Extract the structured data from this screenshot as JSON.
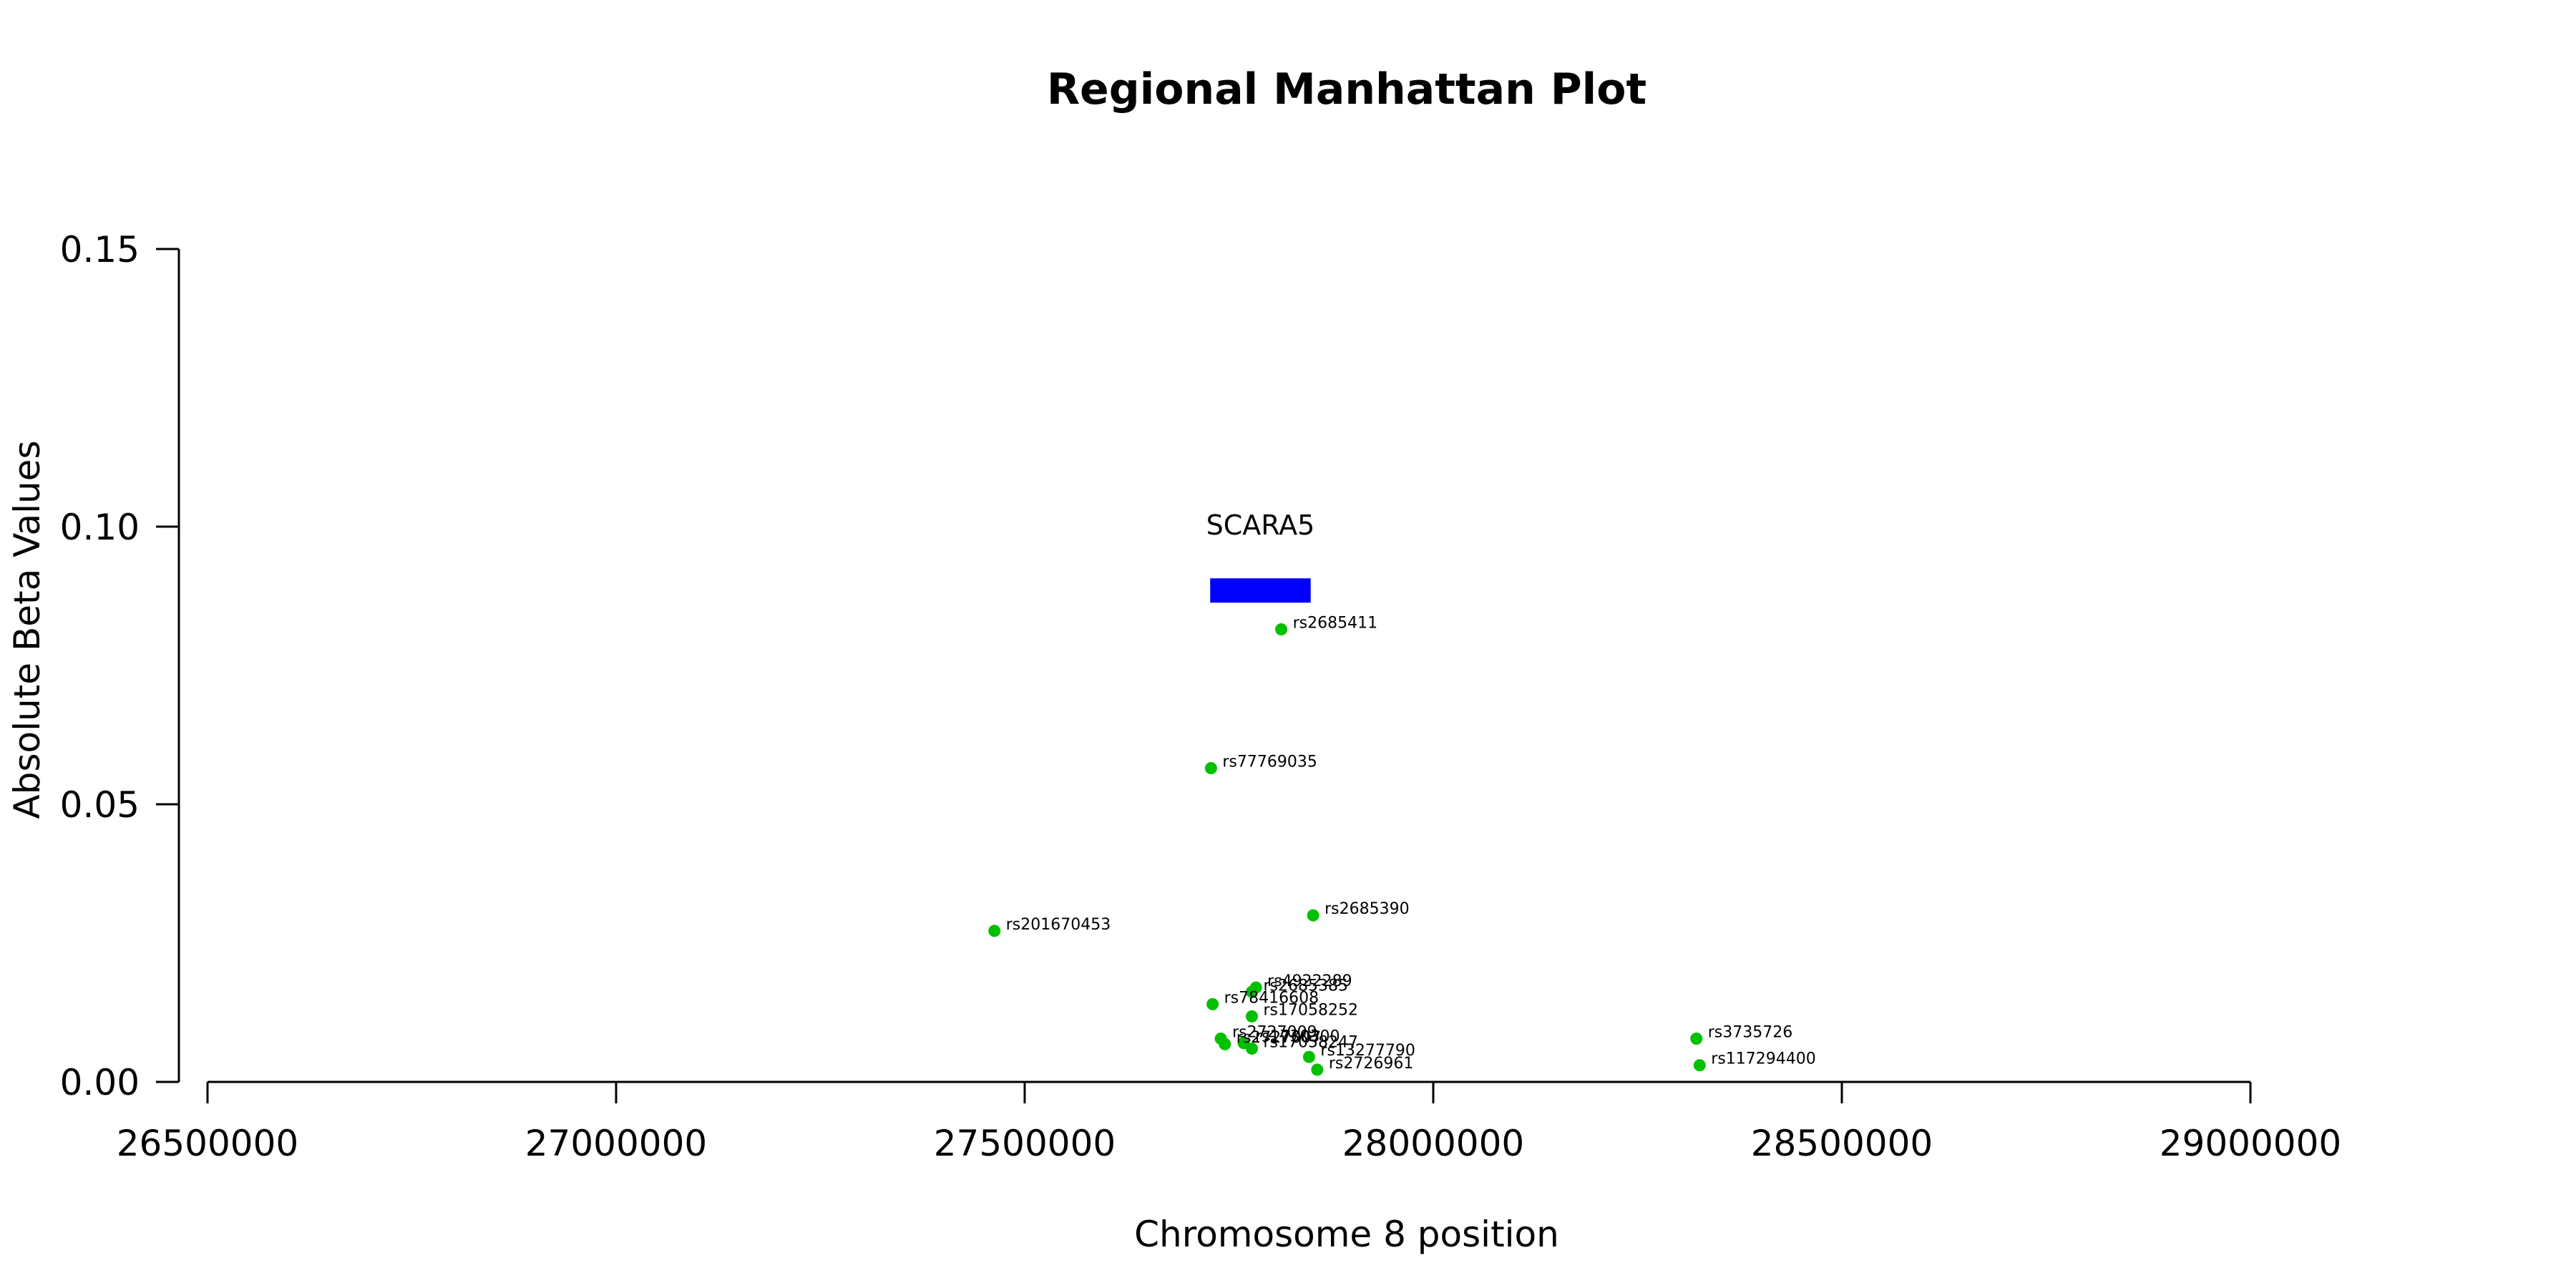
{
  "chart_data": {
    "type": "scatter",
    "title": "Regional Manhattan Plot",
    "xlabel": "Chromosome 8 position",
    "ylabel": "Absolute Beta Values",
    "xlim": [
      26500000,
      29000000
    ],
    "ylim": [
      0,
      0.15
    ],
    "x_ticks": [
      26500000,
      27000000,
      27500000,
      28000000,
      28500000,
      29000000
    ],
    "y_ticks": [
      0.0,
      0.05,
      0.1,
      0.15
    ],
    "x_tick_labels": [
      "26500000",
      "27000000",
      "27500000",
      "28000000",
      "28500000",
      "29000000"
    ],
    "y_tick_labels": [
      "0.00",
      "0.05",
      "0.10",
      "0.15"
    ],
    "point_color": "#00c000",
    "gene": {
      "name": "SCARA5",
      "start": 27727000,
      "end": 27850000,
      "y": 0.0885,
      "color": "#0000ff"
    },
    "points": [
      {
        "id": "rs2685411",
        "x": 27814000,
        "y": 0.0815
      },
      {
        "id": "rs77769035",
        "x": 27728000,
        "y": 0.0565
      },
      {
        "id": "rs2685390",
        "x": 27853000,
        "y": 0.03
      },
      {
        "id": "rs201670453",
        "x": 27463000,
        "y": 0.0272
      },
      {
        "id": "rs4922289",
        "x": 27783000,
        "y": 0.017
      },
      {
        "id": "rs2685385",
        "x": 27778000,
        "y": 0.0162
      },
      {
        "id": "rs78416608",
        "x": 27730000,
        "y": 0.014
      },
      {
        "id": "rs17058252",
        "x": 27778000,
        "y": 0.0118
      },
      {
        "id": "rs2727009",
        "x": 27740000,
        "y": 0.0078
      },
      {
        "id": "rs1730300",
        "x": 27768000,
        "y": 0.007
      },
      {
        "id": "rs2727007",
        "x": 27745000,
        "y": 0.0068
      },
      {
        "id": "rs17058247",
        "x": 27778000,
        "y": 0.006
      },
      {
        "id": "rs13277790",
        "x": 27848000,
        "y": 0.0045
      },
      {
        "id": "rs2726961",
        "x": 27858000,
        "y": 0.0022
      },
      {
        "id": "rs3735726",
        "x": 28322000,
        "y": 0.0078
      },
      {
        "id": "rs117294400",
        "x": 28326000,
        "y": 0.003
      }
    ]
  }
}
